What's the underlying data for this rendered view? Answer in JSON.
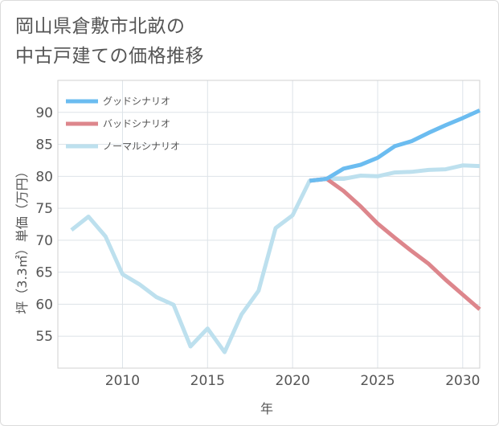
{
  "title_lines": [
    "岡山県倉敷市北畝の",
    "中古戸建ての価格推移"
  ],
  "chart_data": {
    "type": "line",
    "xlabel": "年",
    "ylabel": "坪（3.3㎡）単価（万円）",
    "xlim": [
      2006.2,
      2031
    ],
    "ylim": [
      50,
      95
    ],
    "x_ticks": [
      2010,
      2015,
      2020,
      2025,
      2030
    ],
    "y_ticks": [
      55,
      60,
      65,
      70,
      75,
      80,
      85,
      90
    ],
    "grid": true,
    "legend_position": "top-left",
    "series": [
      {
        "name": "グッドシナリオ",
        "color": "#6bbcf0",
        "x": [
          2021,
          2022,
          2023,
          2024,
          2025,
          2026,
          2027,
          2028,
          2029,
          2030,
          2031
        ],
        "values": [
          79.3,
          79.6,
          81.2,
          81.8,
          82.9,
          84.7,
          85.5,
          86.8,
          88.0,
          89.1,
          90.3
        ]
      },
      {
        "name": "バッドシナリオ",
        "color": "#dd868c",
        "x": [
          2021,
          2022,
          2023,
          2024,
          2025,
          2026,
          2027,
          2028,
          2029,
          2030,
          2031
        ],
        "values": [
          79.3,
          79.6,
          77.7,
          75.3,
          72.6,
          70.4,
          68.3,
          66.3,
          63.8,
          61.5,
          59.2
        ]
      },
      {
        "name": "ノーマルシナリオ",
        "color": "#bde0ee",
        "x": [
          2007,
          2008,
          2009,
          2010,
          2011,
          2012,
          2013,
          2014,
          2015,
          2016,
          2017,
          2018,
          2019,
          2020,
          2021,
          2022,
          2023,
          2024,
          2025,
          2026,
          2027,
          2028,
          2029,
          2030,
          2031
        ],
        "values": [
          71.6,
          73.7,
          70.6,
          64.7,
          63.1,
          61.1,
          59.9,
          53.4,
          56.2,
          52.5,
          58.4,
          62.1,
          71.9,
          73.9,
          79.3,
          79.6,
          79.6,
          80.1,
          80.0,
          80.6,
          80.7,
          81.0,
          81.1,
          81.7,
          81.6
        ]
      }
    ]
  }
}
